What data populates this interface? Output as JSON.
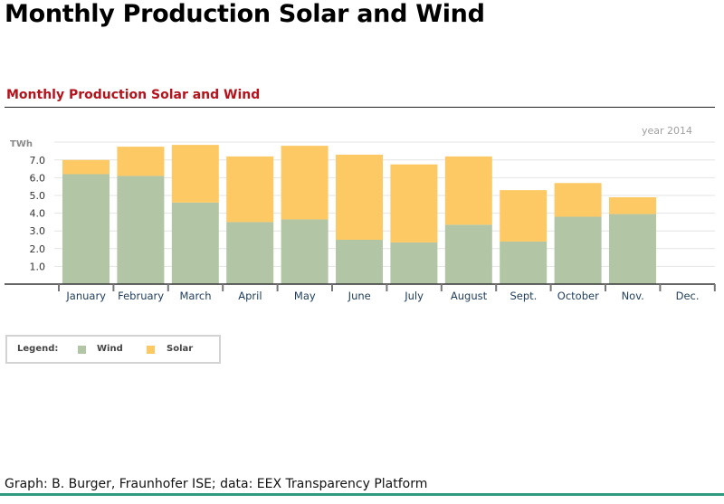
{
  "page": {
    "title": "Monthly Production Solar and Wind",
    "footer": "Graph: B. Burger, Fraunhofer ISE; data: EEX Transparency Platform"
  },
  "colors": {
    "wind": "#b2c6a6",
    "solar": "#fdc965",
    "title_red": "#b5121b",
    "footer_green": "#2e9b7e",
    "grid": "#e4e4e4",
    "axis": "#333333",
    "tick_text": "#333333",
    "month_text": "#1e3c5a"
  },
  "legend": {
    "label": "Legend:",
    "wind": "Wind",
    "solar": "Solar"
  },
  "chart_data": {
    "type": "bar",
    "stacked": true,
    "title": "Monthly Production Solar and Wind",
    "annotation": "year 2014",
    "ylabel": "TWh",
    "xlabel": "",
    "ylim": [
      0,
      8
    ],
    "yticks": [
      1.0,
      2.0,
      3.0,
      4.0,
      5.0,
      6.0,
      7.0
    ],
    "ytick_labels": [
      "1.0",
      "2.0",
      "3.0",
      "4.0",
      "5.0",
      "6.0",
      "7.0"
    ],
    "grid": true,
    "categories": [
      "January",
      "February",
      "March",
      "April",
      "May",
      "June",
      "July",
      "August",
      "Sept.",
      "October",
      "Nov.",
      "Dec."
    ],
    "series": [
      {
        "name": "Wind",
        "values": [
          6.2,
          6.1,
          4.6,
          3.5,
          3.65,
          2.5,
          2.35,
          3.35,
          2.4,
          3.8,
          3.95,
          null
        ]
      },
      {
        "name": "Solar",
        "values": [
          0.8,
          1.65,
          3.25,
          3.7,
          4.15,
          4.8,
          4.4,
          3.85,
          2.9,
          1.9,
          0.95,
          null
        ]
      }
    ]
  }
}
